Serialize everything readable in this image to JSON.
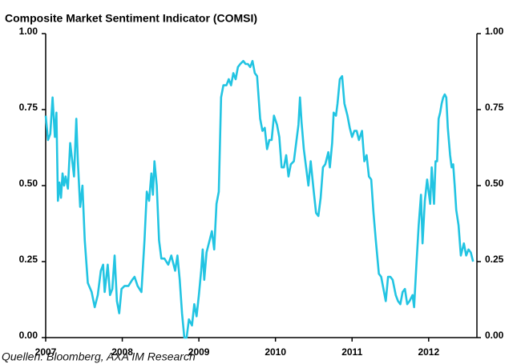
{
  "chart_data": {
    "type": "line",
    "title": "Composite Market Sentiment Indicator (COMSI)",
    "source": "Quellen: Bloomberg, AXA IM Research",
    "color": "#22c4e2",
    "xlim": [
      2007,
      2012.63
    ],
    "xticks": [
      2007,
      2008,
      2009,
      2010,
      2011,
      2012
    ],
    "ylim": [
      0,
      1
    ],
    "yticks": [
      {
        "value": 0,
        "label": "0.00"
      },
      {
        "value": 0.25,
        "label": "0.25"
      },
      {
        "value": 0.5,
        "label": "0.50"
      },
      {
        "value": 0.75,
        "label": "0.75"
      },
      {
        "value": 1,
        "label": "1.00"
      }
    ],
    "y2lim": [
      0,
      1
    ],
    "y2ticks": [
      {
        "value": 0,
        "label": "0.00"
      },
      {
        "value": 0.25,
        "label": "0.25"
      },
      {
        "value": 0.5,
        "label": "0.50"
      },
      {
        "value": 0.75,
        "label": "0.75"
      },
      {
        "value": 1,
        "label": "1.00"
      }
    ],
    "x": [
      2007.0,
      2007.03,
      2007.06,
      2007.09,
      2007.12,
      2007.14,
      2007.16,
      2007.18,
      2007.2,
      2007.22,
      2007.24,
      2007.26,
      2007.29,
      2007.32,
      2007.37,
      2007.4,
      2007.42,
      2007.45,
      2007.48,
      2007.51,
      2007.55,
      2007.6,
      2007.64,
      2007.68,
      2007.72,
      2007.75,
      2007.77,
      2007.81,
      2007.84,
      2007.87,
      2007.9,
      2007.93,
      2007.96,
      2007.99,
      2008.03,
      2008.08,
      2008.13,
      2008.16,
      2008.2,
      2008.25,
      2008.29,
      2008.32,
      2008.35,
      2008.38,
      2008.4,
      2008.42,
      2008.45,
      2008.48,
      2008.51,
      2008.55,
      2008.6,
      2008.64,
      2008.69,
      2008.72,
      2008.75,
      2008.78,
      2008.81,
      2008.84,
      2008.87,
      2008.91,
      2008.94,
      2008.97,
      2009.0,
      2009.03,
      2009.05,
      2009.07,
      2009.1,
      2009.14,
      2009.17,
      2009.2,
      2009.23,
      2009.26,
      2009.29,
      2009.32,
      2009.36,
      2009.39,
      2009.42,
      2009.45,
      2009.48,
      2009.51,
      2009.54,
      2009.58,
      2009.61,
      2009.64,
      2009.67,
      2009.7,
      2009.73,
      2009.76,
      2009.8,
      2009.83,
      2009.86,
      2009.89,
      2009.92,
      2009.95,
      2009.98,
      2010.02,
      2010.05,
      2010.08,
      2010.11,
      2010.14,
      2010.17,
      2010.2,
      2010.24,
      2010.27,
      2010.3,
      2010.32,
      2010.34,
      2010.37,
      2010.4,
      2010.43,
      2010.46,
      2010.5,
      2010.53,
      2010.56,
      2010.59,
      2010.62,
      2010.65,
      2010.69,
      2010.71,
      2010.74,
      2010.76,
      2010.79,
      2010.81,
      2010.84,
      2010.87,
      2010.9,
      2010.94,
      2010.97,
      2011.0,
      2011.03,
      2011.06,
      2011.09,
      2011.13,
      2011.16,
      2011.19,
      2011.22,
      2011.25,
      2011.28,
      2011.31,
      2011.35,
      2011.38,
      2011.41,
      2011.44,
      2011.47,
      2011.5,
      2011.53,
      2011.57,
      2011.6,
      2011.63,
      2011.66,
      2011.69,
      2011.72,
      2011.75,
      2011.79,
      2011.81,
      2011.84,
      2011.87,
      2011.9,
      2011.92,
      2011.95,
      2011.98,
      2012.02,
      2012.04,
      2012.07,
      2012.09,
      2012.11,
      2012.13,
      2012.15,
      2012.17,
      2012.19,
      2012.21,
      2012.23,
      2012.25,
      2012.28,
      2012.3,
      2012.32,
      2012.34,
      2012.36,
      2012.39,
      2012.42,
      2012.46,
      2012.49,
      2012.52,
      2012.55,
      2012.58
    ],
    "values": [
      0.73,
      0.65,
      0.67,
      0.79,
      0.66,
      0.74,
      0.45,
      0.51,
      0.46,
      0.54,
      0.5,
      0.53,
      0.49,
      0.64,
      0.53,
      0.72,
      0.58,
      0.43,
      0.5,
      0.32,
      0.18,
      0.15,
      0.1,
      0.14,
      0.22,
      0.24,
      0.15,
      0.24,
      0.14,
      0.16,
      0.27,
      0.12,
      0.08,
      0.16,
      0.17,
      0.17,
      0.19,
      0.2,
      0.17,
      0.15,
      0.32,
      0.48,
      0.45,
      0.54,
      0.47,
      0.58,
      0.5,
      0.32,
      0.26,
      0.26,
      0.24,
      0.27,
      0.22,
      0.27,
      0.19,
      0.08,
      0.0,
      0.0,
      0.06,
      0.04,
      0.11,
      0.07,
      0.14,
      0.22,
      0.29,
      0.19,
      0.28,
      0.32,
      0.35,
      0.29,
      0.44,
      0.48,
      0.79,
      0.83,
      0.83,
      0.85,
      0.83,
      0.87,
      0.85,
      0.89,
      0.9,
      0.91,
      0.9,
      0.9,
      0.89,
      0.91,
      0.87,
      0.86,
      0.72,
      0.68,
      0.69,
      0.62,
      0.65,
      0.65,
      0.73,
      0.7,
      0.66,
      0.56,
      0.56,
      0.6,
      0.53,
      0.57,
      0.58,
      0.64,
      0.7,
      0.79,
      0.71,
      0.62,
      0.56,
      0.5,
      0.58,
      0.48,
      0.41,
      0.4,
      0.46,
      0.56,
      0.57,
      0.61,
      0.56,
      0.64,
      0.74,
      0.73,
      0.77,
      0.85,
      0.86,
      0.77,
      0.73,
      0.69,
      0.66,
      0.68,
      0.68,
      0.65,
      0.68,
      0.58,
      0.6,
      0.53,
      0.52,
      0.41,
      0.32,
      0.21,
      0.2,
      0.16,
      0.12,
      0.2,
      0.2,
      0.19,
      0.14,
      0.12,
      0.11,
      0.15,
      0.16,
      0.11,
      0.12,
      0.14,
      0.1,
      0.24,
      0.37,
      0.47,
      0.31,
      0.45,
      0.52,
      0.44,
      0.56,
      0.44,
      0.58,
      0.58,
      0.72,
      0.74,
      0.77,
      0.79,
      0.8,
      0.79,
      0.69,
      0.6,
      0.56,
      0.57,
      0.5,
      0.42,
      0.37,
      0.27,
      0.31,
      0.27,
      0.29,
      0.28,
      0.25
    ]
  }
}
